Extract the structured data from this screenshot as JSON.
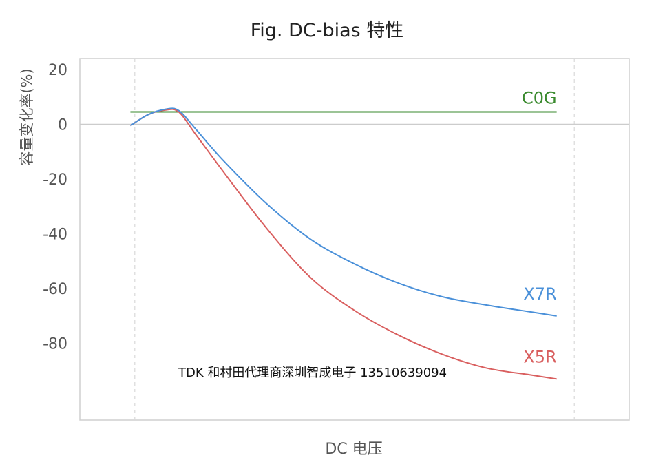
{
  "chart_data": {
    "type": "line",
    "title": "Fig. DC-bias 特性",
    "xlabel": "DC 电压",
    "ylabel": "容量变化率(%)",
    "ylim": [
      -108,
      24
    ],
    "xlim": [
      -0.125,
      1.125
    ],
    "yticks": [
      20,
      0,
      -20,
      -40,
      -60,
      -80
    ],
    "grid": "vertical dashed lines at x=0 and x=1; solid horizontal line at y=0",
    "x_tick_labels": "none",
    "series": [
      {
        "name": "C0G",
        "color": "#3a8a2e",
        "x": [
          -0.01,
          0.96
        ],
        "y": [
          4.5,
          4.5
        ]
      },
      {
        "name": "X7R",
        "color": "#4a90d9",
        "x": [
          -0.01,
          0.03,
          0.07,
          0.1,
          0.14,
          0.2,
          0.3,
          0.4,
          0.5,
          0.6,
          0.7,
          0.8,
          0.9,
          0.96
        ],
        "y": [
          -0.5,
          3.5,
          5.5,
          5.0,
          -2.0,
          -13.0,
          -29.0,
          -42.0,
          -51.0,
          -58.0,
          -63.0,
          -66.0,
          -68.5,
          -70.0
        ]
      },
      {
        "name": "X5R",
        "color": "#d95f5f",
        "x": [
          -0.01,
          0.03,
          0.07,
          0.1,
          0.14,
          0.2,
          0.3,
          0.4,
          0.5,
          0.6,
          0.7,
          0.8,
          0.9,
          0.96
        ],
        "y": [
          -0.5,
          3.5,
          5.2,
          4.5,
          -4.0,
          -17.0,
          -38.0,
          -56.0,
          -68.0,
          -77.0,
          -84.0,
          -89.0,
          -91.5,
          -93.0
        ]
      }
    ]
  },
  "watermark": "TDK 和村田代理商深圳智成电子 13510639094"
}
